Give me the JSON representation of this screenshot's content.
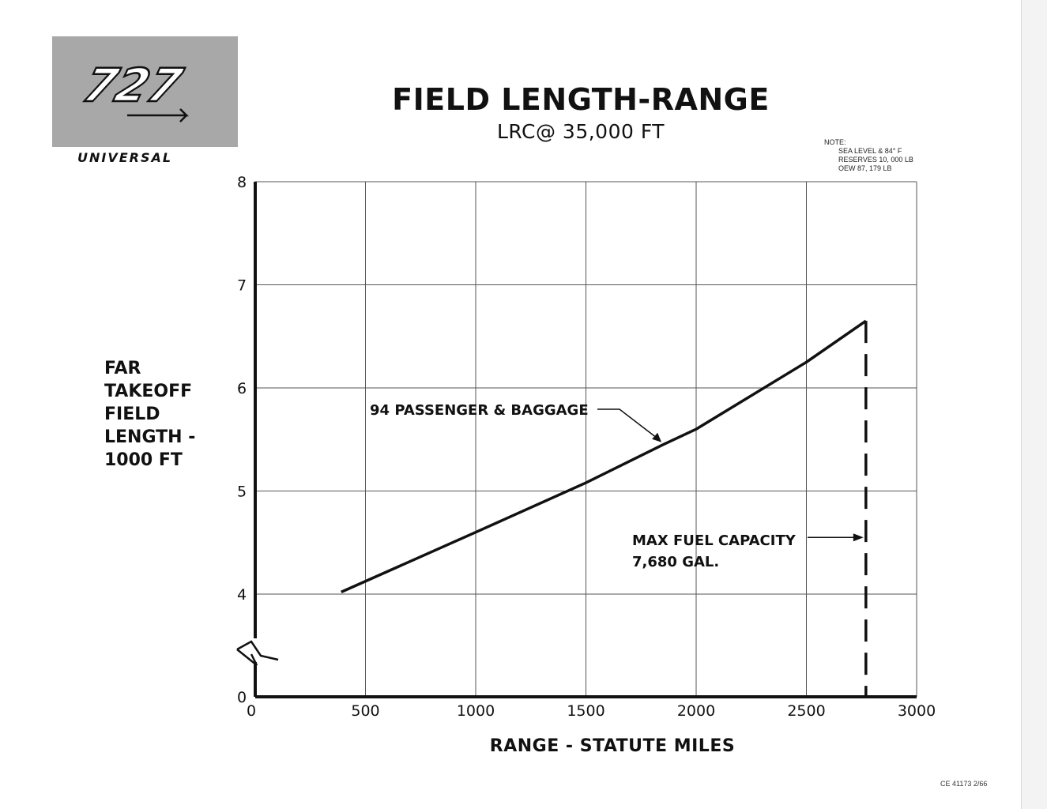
{
  "logo": {
    "number": "727",
    "subtitle": "UNIVERSAL"
  },
  "footer": {
    "code": "CE 41173 2/66"
  },
  "note": {
    "heading": "NOTE:",
    "lines": [
      "SEA LEVEL & 84° F",
      "RESERVES 10, 000 LB",
      "OEW 87, 179 LB"
    ]
  },
  "chart_data": {
    "type": "line",
    "title": "FIELD LENGTH-RANGE",
    "subtitle": "LRC@ 35,000 FT",
    "xlabel": "RANGE - STATUTE MILES",
    "ylabel": "FAR\nTAKEOFF\nFIELD\nLENGTH -\n1000 FT",
    "xlim": [
      0,
      3000
    ],
    "ylim": [
      0,
      8
    ],
    "y_axis_break": "between 0 and 4",
    "grid": true,
    "x_ticks": [
      0,
      500,
      1000,
      1500,
      2000,
      2500,
      3000
    ],
    "x_tick_labels": [
      "0",
      "500",
      "1000",
      "1500",
      "2000",
      "2500",
      "3000"
    ],
    "y_ticks": [
      0,
      4,
      5,
      6,
      7,
      8
    ],
    "y_tick_labels": [
      "0",
      "4",
      "5",
      "6",
      "7",
      "8"
    ],
    "series": [
      {
        "name": "94 PASSENGER & BAGGAGE",
        "x": [
          390,
          1000,
          1500,
          1850,
          2000,
          2500,
          2770
        ],
        "y": [
          4.02,
          4.6,
          5.08,
          5.45,
          5.6,
          6.25,
          6.65
        ]
      }
    ],
    "annotations": [
      {
        "text": "94 PASSENGER & BAGGAGE",
        "points_to": [
          1850,
          5.45
        ]
      },
      {
        "text": "MAX FUEL CAPACITY",
        "text2": "7,680 GAL.",
        "points_to": [
          2770,
          4.55
        ]
      }
    ],
    "vertical_reference": {
      "x": 2770,
      "y_top": 6.65,
      "style": "dashed",
      "label": "MAX FUEL CAPACITY 7,680 GAL."
    },
    "colors": {
      "line": "#111111",
      "grid": "#555555",
      "background": "#ffffff"
    }
  }
}
